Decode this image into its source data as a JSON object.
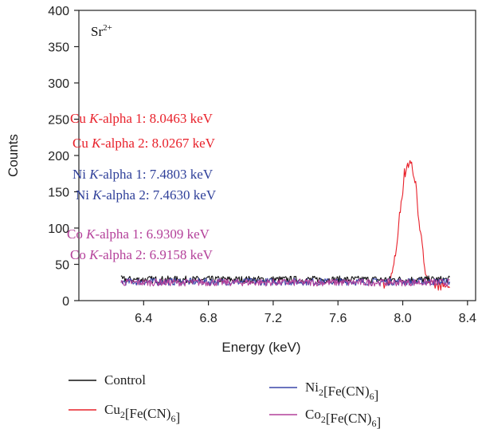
{
  "chart_data": {
    "type": "line",
    "xlabel": "Energy (keV)",
    "ylabel": "Counts",
    "xlim": [
      6.0,
      8.45
    ],
    "ylim": [
      0,
      400
    ],
    "xticks": [
      "6.4",
      "6.8",
      "7.2",
      "7.6",
      "8.0",
      "8.4"
    ],
    "yticks": [
      "0",
      "50",
      "100",
      "150",
      "200",
      "250",
      "300",
      "350",
      "400"
    ],
    "grid": false,
    "legend_position": "bottom",
    "sample_label": {
      "base": "Sr",
      "sup": "2+"
    },
    "annotations": [
      {
        "text": "Cu K-alpha 1: 8.0463 keV",
        "prefix": "Cu ",
        "italic": "K",
        "suffix": "-alpha 1: 8.0463 keV",
        "color": "#e8202a"
      },
      {
        "text": "Cu K-alpha 2: 8.0267 keV",
        "prefix": "Cu ",
        "italic": "K",
        "suffix": "-alpha 2: 8.0267 keV",
        "color": "#e8202a"
      },
      {
        "text": "Ni K-alpha 1: 7.4803 keV",
        "prefix": "Ni ",
        "italic": "K",
        "suffix": "-alpha 1: 7.4803 keV",
        "color": "#2e3f99"
      },
      {
        "text": "Ni K-alpha 2: 7.4630 keV",
        "prefix": "Ni ",
        "italic": "K",
        "suffix": "-alpha 2: 7.4630 keV",
        "color": "#2e3f99"
      },
      {
        "text": "Co K-alpha 1: 6.9309 keV",
        "prefix": "Co ",
        "italic": "K",
        "suffix": "-alpha 1: 6.9309 keV",
        "color": "#b4419a"
      },
      {
        "text": "Co K-alpha 2: 6.9158 keV",
        "prefix": "Co ",
        "italic": "K",
        "suffix": "-alpha 2: 6.9158 keV",
        "color": "#b4419a"
      }
    ],
    "series": [
      {
        "name": "Control",
        "color": "#111111",
        "x_start": 6.26,
        "x_end": 8.29,
        "baseline": 29,
        "noise": 5,
        "peak": null
      },
      {
        "name": "Cu2[Fe(CN)6]",
        "color": "#e8202a",
        "x_start": 7.88,
        "x_end": 8.29,
        "baseline": 20,
        "noise": 6,
        "peak": {
          "center": 8.04,
          "height": 190,
          "width": 0.075,
          "shape": "flat-gaussian"
        }
      },
      {
        "name": "Ni2[Fe(CN)6]",
        "color": "#3a46a8",
        "x_start": 6.26,
        "x_end": 8.29,
        "baseline": 26,
        "noise": 5,
        "peak": null
      },
      {
        "name": "Co2[Fe(CN)6]",
        "color": "#b4419a",
        "x_start": 6.26,
        "x_end": 8.29,
        "baseline": 25,
        "noise": 5,
        "peak": null
      }
    ],
    "legend": [
      {
        "series_index": 0,
        "base": "Control",
        "parts": []
      },
      {
        "series_index": 2,
        "base": "Ni",
        "parts": [
          [
            "sub",
            "2"
          ],
          [
            "text",
            "[Fe(CN)"
          ],
          [
            "sub",
            "6"
          ],
          [
            "text",
            "]"
          ]
        ]
      },
      {
        "series_index": 1,
        "base": "Cu",
        "parts": [
          [
            "sub",
            "2"
          ],
          [
            "text",
            "[Fe(CN)"
          ],
          [
            "sub",
            "6"
          ],
          [
            "text",
            "]"
          ]
        ]
      },
      {
        "series_index": 3,
        "base": "Co",
        "parts": [
          [
            "sub",
            "2"
          ],
          [
            "text",
            "[Fe(CN)"
          ],
          [
            "sub",
            "6"
          ],
          [
            "text",
            "]"
          ]
        ]
      }
    ]
  }
}
